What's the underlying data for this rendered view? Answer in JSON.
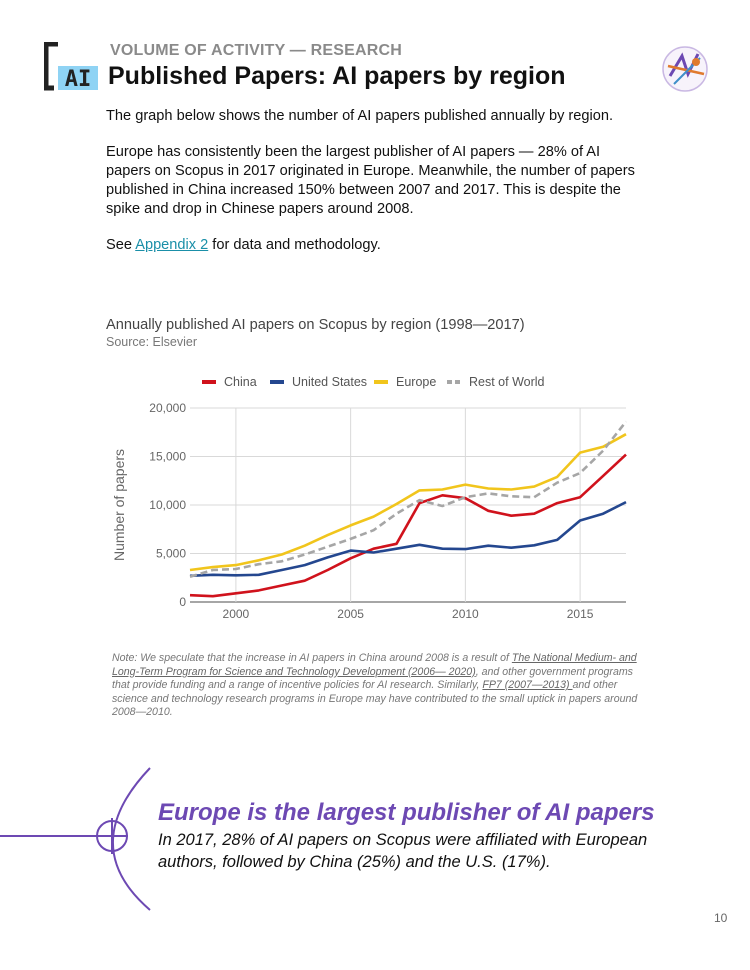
{
  "header": {
    "kicker": "VOLUME OF ACTIVITY — RESEARCH",
    "title": "Published Papers: AI papers by region",
    "logo_text": "AI"
  },
  "body": {
    "p1": "The graph below shows the number of AI papers published annually by region.",
    "p2": "Europe has consistently been the largest publisher of AI papers — 28% of AI papers on Scopus in 2017 originated in Europe. Meanwhile, the number of papers published in China increased 150% between 2007 and 2017. This is despite the spike and drop in Chinese papers around 2008.",
    "p3_before": "See ",
    "p3_link": "Appendix 2",
    "p3_after": " for data and methodology."
  },
  "chart_data": {
    "type": "line",
    "title": "Annually published AI papers on Scopus by region (1998—2017)",
    "source": "Source: Elsevier",
    "xlabel": "",
    "ylabel": "Number of papers",
    "xlim": [
      1998,
      2017
    ],
    "ylim": [
      0,
      20000
    ],
    "x_ticks": [
      2000,
      2005,
      2010,
      2015
    ],
    "y_ticks": [
      0,
      5000,
      10000,
      15000,
      20000
    ],
    "y_tick_labels": [
      "0",
      "5,000",
      "10,000",
      "15,000",
      "20,000"
    ],
    "grid": true,
    "legend_position": "top",
    "x": [
      1998,
      1999,
      2000,
      2001,
      2002,
      2003,
      2004,
      2005,
      2006,
      2007,
      2008,
      2009,
      2010,
      2011,
      2012,
      2013,
      2014,
      2015,
      2016,
      2017
    ],
    "series": [
      {
        "name": "China",
        "color": "#d0121c",
        "dash": false,
        "values": [
          700,
          600,
          900,
          1200,
          1700,
          2200,
          3300,
          4500,
          5500,
          6000,
          10200,
          11000,
          10700,
          9400,
          8900,
          9100,
          10200,
          10800,
          13000,
          15200
        ]
      },
      {
        "name": "United States",
        "color": "#24478f",
        "dash": false,
        "values": [
          2700,
          2800,
          2750,
          2800,
          3300,
          3800,
          4600,
          5300,
          5100,
          5500,
          5900,
          5500,
          5450,
          5800,
          5600,
          5850,
          6400,
          8400,
          9100,
          10300
        ]
      },
      {
        "name": "Europe",
        "color": "#f1c51c",
        "dash": false,
        "values": [
          3300,
          3600,
          3800,
          4300,
          4900,
          5800,
          6900,
          7900,
          8800,
          10100,
          11500,
          11600,
          12100,
          11700,
          11600,
          11900,
          12900,
          15400,
          16000,
          17300
        ]
      },
      {
        "name": "Rest of World",
        "color": "#a6a6a6",
        "dash": true,
        "values": [
          2600,
          3300,
          3400,
          3900,
          4200,
          4900,
          5700,
          6500,
          7400,
          9100,
          10500,
          9900,
          10800,
          11200,
          10900,
          10800,
          12300,
          13300,
          15600,
          18600
        ]
      }
    ]
  },
  "note": {
    "before1": "Note: We speculate that the increase in AI papers in China around 2008 is a result of ",
    "link1": "The National Medium- and Long-Term Program for Science and Technology Development (2006— 2020)",
    "middle": ", and other government programs that provide funding and a range of incentive policies for AI research. Similarly, ",
    "link2": "FP7 (2007—2013) ",
    "after": "and other science and technology research programs in Europe may have contributed to the small uptick in papers around 2008—2010."
  },
  "callout": {
    "heading": "Europe is the largest publisher of AI papers",
    "text": "In 2017, 28% of AI papers on Scopus were affiliated with European authors, followed by China (25%) and the U.S. (17%)."
  },
  "page_number": "10",
  "colors": {
    "accent": "#6d49b3",
    "logo_blue": "#8fd3f4",
    "link": "#1a8fa8"
  }
}
